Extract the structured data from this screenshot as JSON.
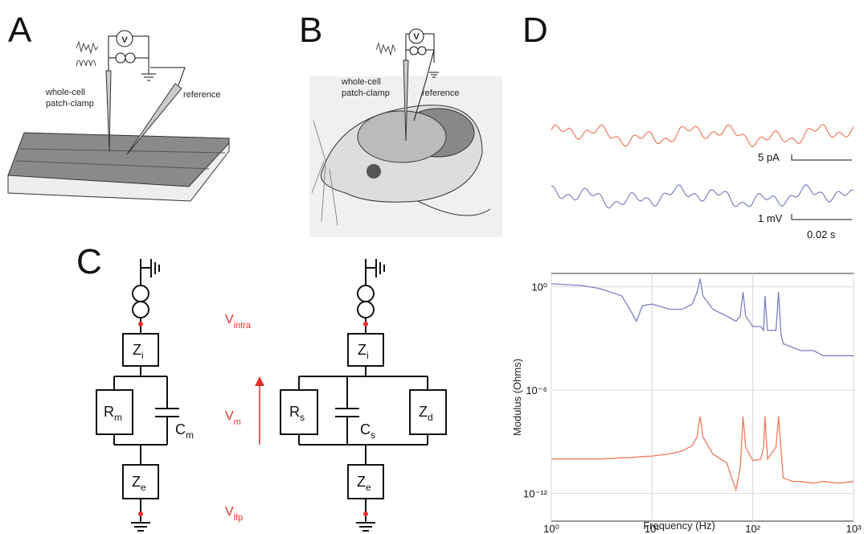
{
  "panels": {
    "a": {
      "label": "A",
      "pipette_label": [
        "whole-cell",
        "patch-clamp"
      ],
      "reference_label": "reference",
      "meter": "V"
    },
    "b": {
      "label": "B",
      "pipette_label": [
        "whole-cell",
        "patch-clamp"
      ],
      "reference_label": "reference",
      "meter": "V"
    },
    "c": {
      "label": "C",
      "circuit_1": {
        "zi": {
          "main": "Z",
          "sub": "i"
        },
        "r": {
          "main": "R",
          "sub": "m"
        },
        "c": {
          "main": "C",
          "sub": "m"
        },
        "ze": {
          "main": "Z",
          "sub": "e"
        }
      },
      "potentials": [
        {
          "main": "V",
          "sub": "intra"
        },
        {
          "main": "V",
          "sub": "m"
        },
        {
          "main": "V",
          "sub": "lfp"
        }
      ],
      "circuit_2": {
        "zi": {
          "main": "Z",
          "sub": "i"
        },
        "r": {
          "main": "R",
          "sub": "s"
        },
        "c": {
          "main": "C",
          "sub": "s"
        },
        "zd": {
          "main": "Z",
          "sub": "d"
        },
        "ze": {
          "main": "Z",
          "sub": "e"
        }
      }
    },
    "d": {
      "label": "D",
      "current_scale": "5 pA",
      "voltage_scale": "1 mV",
      "time_scale": "0.02 s"
    }
  },
  "chart_data": {
    "type": "line",
    "xlabel": "Frequency (Hz)",
    "ylabel": "Modulus (Ohms)",
    "xscale": "log",
    "yscale": "log",
    "grid": true,
    "x": [
      1,
      2,
      3,
      5,
      6,
      7,
      8,
      10,
      15,
      20,
      25,
      28,
      30,
      32,
      40,
      55,
      68,
      75,
      80,
      85,
      100,
      120,
      128,
      132,
      140,
      170,
      180,
      190,
      200,
      250,
      300,
      400,
      500,
      700,
      1000
    ],
    "series": [
      {
        "color": "#7b80c4",
        "values": [
          1.5,
          1.2,
          0.8,
          0.3,
          0.05,
          0.01,
          0.08,
          0.1,
          0.05,
          0.05,
          0.1,
          0.5,
          3,
          0.3,
          0.05,
          0.02,
          0.01,
          0.02,
          0.5,
          0.02,
          0.005,
          0.005,
          0.003,
          0.3,
          0.003,
          0.003,
          0.5,
          0.002,
          0.0005,
          0.0003,
          0.0002,
          0.0002,
          0.0001,
          0.0001,
          0.0001
        ]
      },
      {
        "color": "#f07a5a",
        "values": [
          1e-10,
          1e-10,
          1e-10,
          1.2e-10,
          1.2e-10,
          1.3e-10,
          1.4e-10,
          1.5e-10,
          2e-10,
          3e-10,
          6e-10,
          2e-09,
          3e-08,
          2e-09,
          2e-10,
          6e-11,
          1.6e-12,
          3e-11,
          3e-08,
          5e-10,
          8e-11,
          1e-10,
          5e-10,
          3e-08,
          1e-10,
          5e-10,
          3e-08,
          5e-10,
          8e-12,
          5e-12,
          5e-12,
          4e-12,
          5e-12,
          4e-12,
          5e-12
        ]
      }
    ],
    "xlim": [
      1,
      1000
    ],
    "ylim": [
      2.5e-14,
      6
    ],
    "xticks": [
      {
        "value": 1,
        "label": "10⁰"
      },
      {
        "value": 10,
        "label": "10¹"
      },
      {
        "value": 100,
        "label": "10²"
      },
      {
        "value": 1000,
        "label": "10³"
      }
    ],
    "yticks": [
      {
        "value": 1e-12,
        "label": "10⁻¹²"
      },
      {
        "value": 1e-06,
        "label": "10⁻⁶"
      },
      {
        "value": 1,
        "label": "10⁰"
      }
    ]
  }
}
